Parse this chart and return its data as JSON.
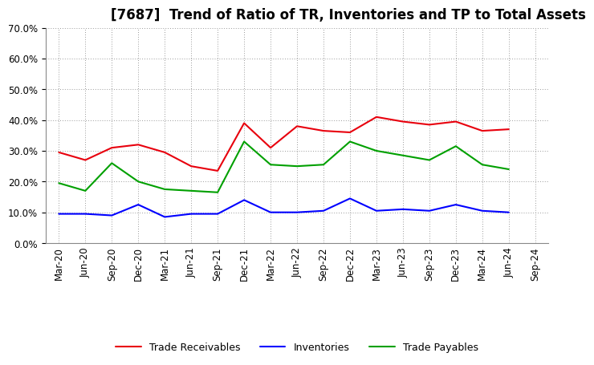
{
  "title": "[7687]  Trend of Ratio of TR, Inventories and TP to Total Assets",
  "x_labels": [
    "Mar-20",
    "Jun-20",
    "Sep-20",
    "Dec-20",
    "Mar-21",
    "Jun-21",
    "Sep-21",
    "Dec-21",
    "Mar-22",
    "Jun-22",
    "Sep-22",
    "Dec-22",
    "Mar-23",
    "Jun-23",
    "Sep-23",
    "Dec-23",
    "Mar-24",
    "Jun-24",
    "Sep-24"
  ],
  "trade_receivables": [
    0.295,
    0.27,
    0.31,
    0.32,
    0.295,
    0.25,
    0.235,
    0.39,
    0.31,
    0.38,
    0.365,
    0.36,
    0.41,
    0.395,
    0.385,
    0.395,
    0.365,
    0.37,
    null
  ],
  "inventories": [
    0.095,
    0.095,
    0.09,
    0.125,
    0.085,
    0.095,
    0.095,
    0.14,
    0.1,
    0.1,
    0.105,
    0.145,
    0.105,
    0.11,
    0.105,
    0.125,
    0.105,
    0.1,
    null
  ],
  "trade_payables": [
    0.195,
    0.17,
    0.26,
    0.2,
    0.175,
    0.17,
    0.165,
    0.33,
    0.255,
    0.25,
    0.255,
    0.33,
    0.3,
    0.285,
    0.27,
    0.315,
    0.255,
    0.24,
    null
  ],
  "tr_color": "#e8000d",
  "inv_color": "#0000ff",
  "tp_color": "#00a000",
  "ylim": [
    0,
    0.7
  ],
  "yticks": [
    0.0,
    0.1,
    0.2,
    0.3,
    0.4,
    0.5,
    0.6,
    0.7
  ],
  "background_color": "#ffffff",
  "grid_color": "#999999"
}
